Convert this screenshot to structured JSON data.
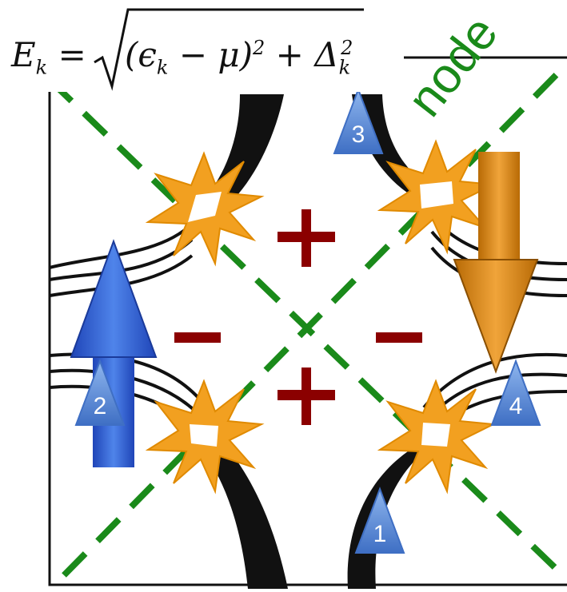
{
  "formula": {
    "lhs": "E",
    "lhs_sub": "k",
    "equals": "=",
    "rhs": "(ϵ",
    "rhs_sub": "k",
    "rhs_mid": " − μ)",
    "rhs_sup": "2",
    "rhs_plus": " + Δ",
    "rhs_sub2": "k",
    "rhs_sup2": "2"
  },
  "node_label": "node",
  "signs": {
    "plus_top": "+",
    "plus_bottom": "+",
    "minus_left": "−",
    "minus_right": "−"
  },
  "markers": [
    "1",
    "2",
    "3",
    "4"
  ],
  "colors": {
    "node_line": "#1a8a1a",
    "sign": "#8b0000",
    "blue_arrow": "#2f5fd0",
    "orange_arrow": "#d98a12",
    "star": "#f2a020",
    "marker": "#5d8fd6"
  }
}
